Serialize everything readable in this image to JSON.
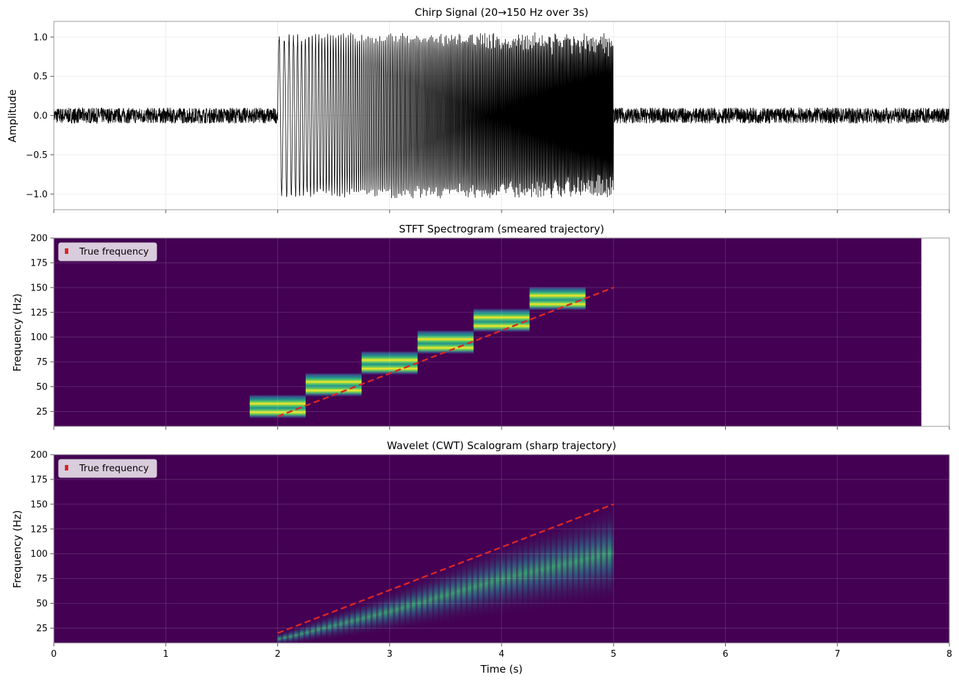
{
  "chart_data": [
    {
      "type": "line",
      "title": "Chirp Signal (20→150 Hz over 3s)",
      "xlabel": "",
      "ylabel": "Amplitude",
      "xlim": [
        0,
        8
      ],
      "ylim": [
        -1.2,
        1.2
      ],
      "grid": true,
      "x_ticks": [
        0,
        1,
        2,
        3,
        4,
        5,
        6,
        7,
        8
      ],
      "y_ticks": [
        "1.0",
        "0.5",
        "0.0",
        "−0.5",
        "−1.0"
      ],
      "series": [
        {
          "x": [
            0,
            2,
            2,
            5,
            5,
            8
          ],
          "y": [
            0,
            0,
            1.0,
            1.0,
            0,
            0
          ],
          "chirp": {
            "t_start": 2,
            "t_end": 5,
            "f_start": 20,
            "f_end": 150,
            "amplitude": 1.0,
            "noise_amplitude": 0.1
          }
        }
      ],
      "color": "#000000"
    },
    {
      "type": "heatmap",
      "title": "STFT Spectrogram (smeared trajectory)",
      "xlabel": "",
      "ylabel": "Frequency (Hz)",
      "xlim": [
        0,
        8
      ],
      "ylim": [
        10,
        200
      ],
      "grid": true,
      "y_ticks": [
        25,
        50,
        75,
        100,
        125,
        150,
        175,
        200
      ],
      "data_extent_x": [
        0,
        7.75
      ],
      "segments": [
        {
          "t0": 1.75,
          "t1": 2.25,
          "f": 30
        },
        {
          "t0": 2.25,
          "t1": 2.75,
          "f": 52
        },
        {
          "t0": 2.75,
          "t1": 3.25,
          "f": 74
        },
        {
          "t0": 3.25,
          "t1": 3.75,
          "f": 95
        },
        {
          "t0": 3.75,
          "t1": 4.25,
          "f": 117
        },
        {
          "t0": 4.25,
          "t1": 4.75,
          "f": 139
        }
      ],
      "true_frequency": {
        "x": [
          2,
          5
        ],
        "y": [
          20,
          150
        ]
      },
      "legend": {
        "entries": [
          "True frequency"
        ],
        "position": "top-left"
      },
      "colors": {
        "background": "#440154",
        "line": "#d62728"
      }
    },
    {
      "type": "heatmap",
      "title": "Wavelet (CWT) Scalogram (sharp trajectory)",
      "xlabel": "Time (s)",
      "ylabel": "Frequency (Hz)",
      "xlim": [
        0,
        8
      ],
      "ylim": [
        10,
        200
      ],
      "grid": true,
      "x_ticks": [
        0,
        1,
        2,
        3,
        4,
        5,
        6,
        7,
        8
      ],
      "y_ticks": [
        25,
        50,
        75,
        100,
        125,
        150,
        175,
        200
      ],
      "ridge": {
        "x": [
          2,
          3,
          4,
          5
        ],
        "y": [
          12,
          38,
          68,
          92
        ]
      },
      "true_frequency": {
        "x": [
          2,
          5
        ],
        "y": [
          20,
          150
        ]
      },
      "legend": {
        "entries": [
          "True frequency"
        ],
        "position": "top-left"
      },
      "colors": {
        "background": "#440154",
        "line": "#d62728"
      }
    }
  ]
}
